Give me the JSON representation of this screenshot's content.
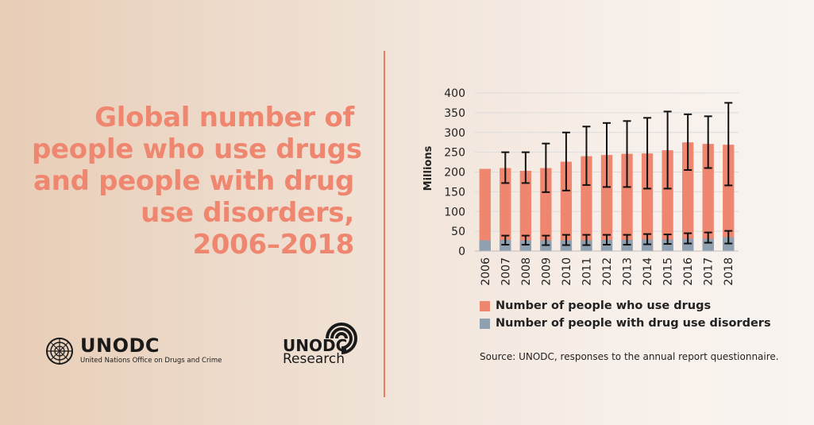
{
  "title_lines": [
    "Global number of",
    "people who use drugs",
    "and people with drug",
    "use disorders,",
    "2006–2018"
  ],
  "logos": {
    "unodc_name": "UNODC",
    "unodc_sub": "United Nations Office on Drugs and Crime",
    "research_line1": "UNODC",
    "research_line2": "Research"
  },
  "source": "Source: UNODC, responses to the annual report questionnaire.",
  "colors": {
    "title": "#ef8770",
    "divider": "#ee7a63",
    "users": "#ef8770",
    "disorders": "#8fa0b1"
  },
  "chart_data": {
    "type": "bar",
    "stacked": true,
    "categories": [
      "2006",
      "2007",
      "2008",
      "2009",
      "2010",
      "2011",
      "2012",
      "2013",
      "2014",
      "2015",
      "2016",
      "2017",
      "2018"
    ],
    "series": [
      {
        "name": "Number of people who use drugs",
        "color": "#ef8770",
        "values": [
          208,
          210,
          203,
          210,
          226,
          240,
          243,
          246,
          247,
          255,
          275,
          271,
          269
        ],
        "error_low": [
          null,
          172,
          172,
          149,
          153,
          167,
          162,
          162,
          158,
          158,
          205,
          210,
          166
        ],
        "error_high": [
          null,
          250,
          250,
          272,
          300,
          315,
          324,
          329,
          337,
          353,
          346,
          341,
          375
        ]
      },
      {
        "name": "Number of people with drug use disorders",
        "color": "#8fa0b1",
        "values": [
          27,
          28,
          27,
          27,
          27,
          27,
          28,
          28,
          29,
          29,
          31,
          31,
          35
        ],
        "error_low": [
          null,
          16,
          16,
          15,
          15,
          15,
          16,
          16,
          17,
          18,
          19,
          21,
          19
        ],
        "error_high": [
          null,
          39,
          39,
          39,
          41,
          41,
          41,
          41,
          43,
          42,
          45,
          47,
          51
        ]
      }
    ],
    "ylabel": "Millions",
    "ylim": [
      0,
      400
    ],
    "yticks": [
      0,
      50,
      100,
      150,
      200,
      250,
      300,
      350,
      400
    ],
    "grid": true,
    "legend_position": "bottom"
  }
}
